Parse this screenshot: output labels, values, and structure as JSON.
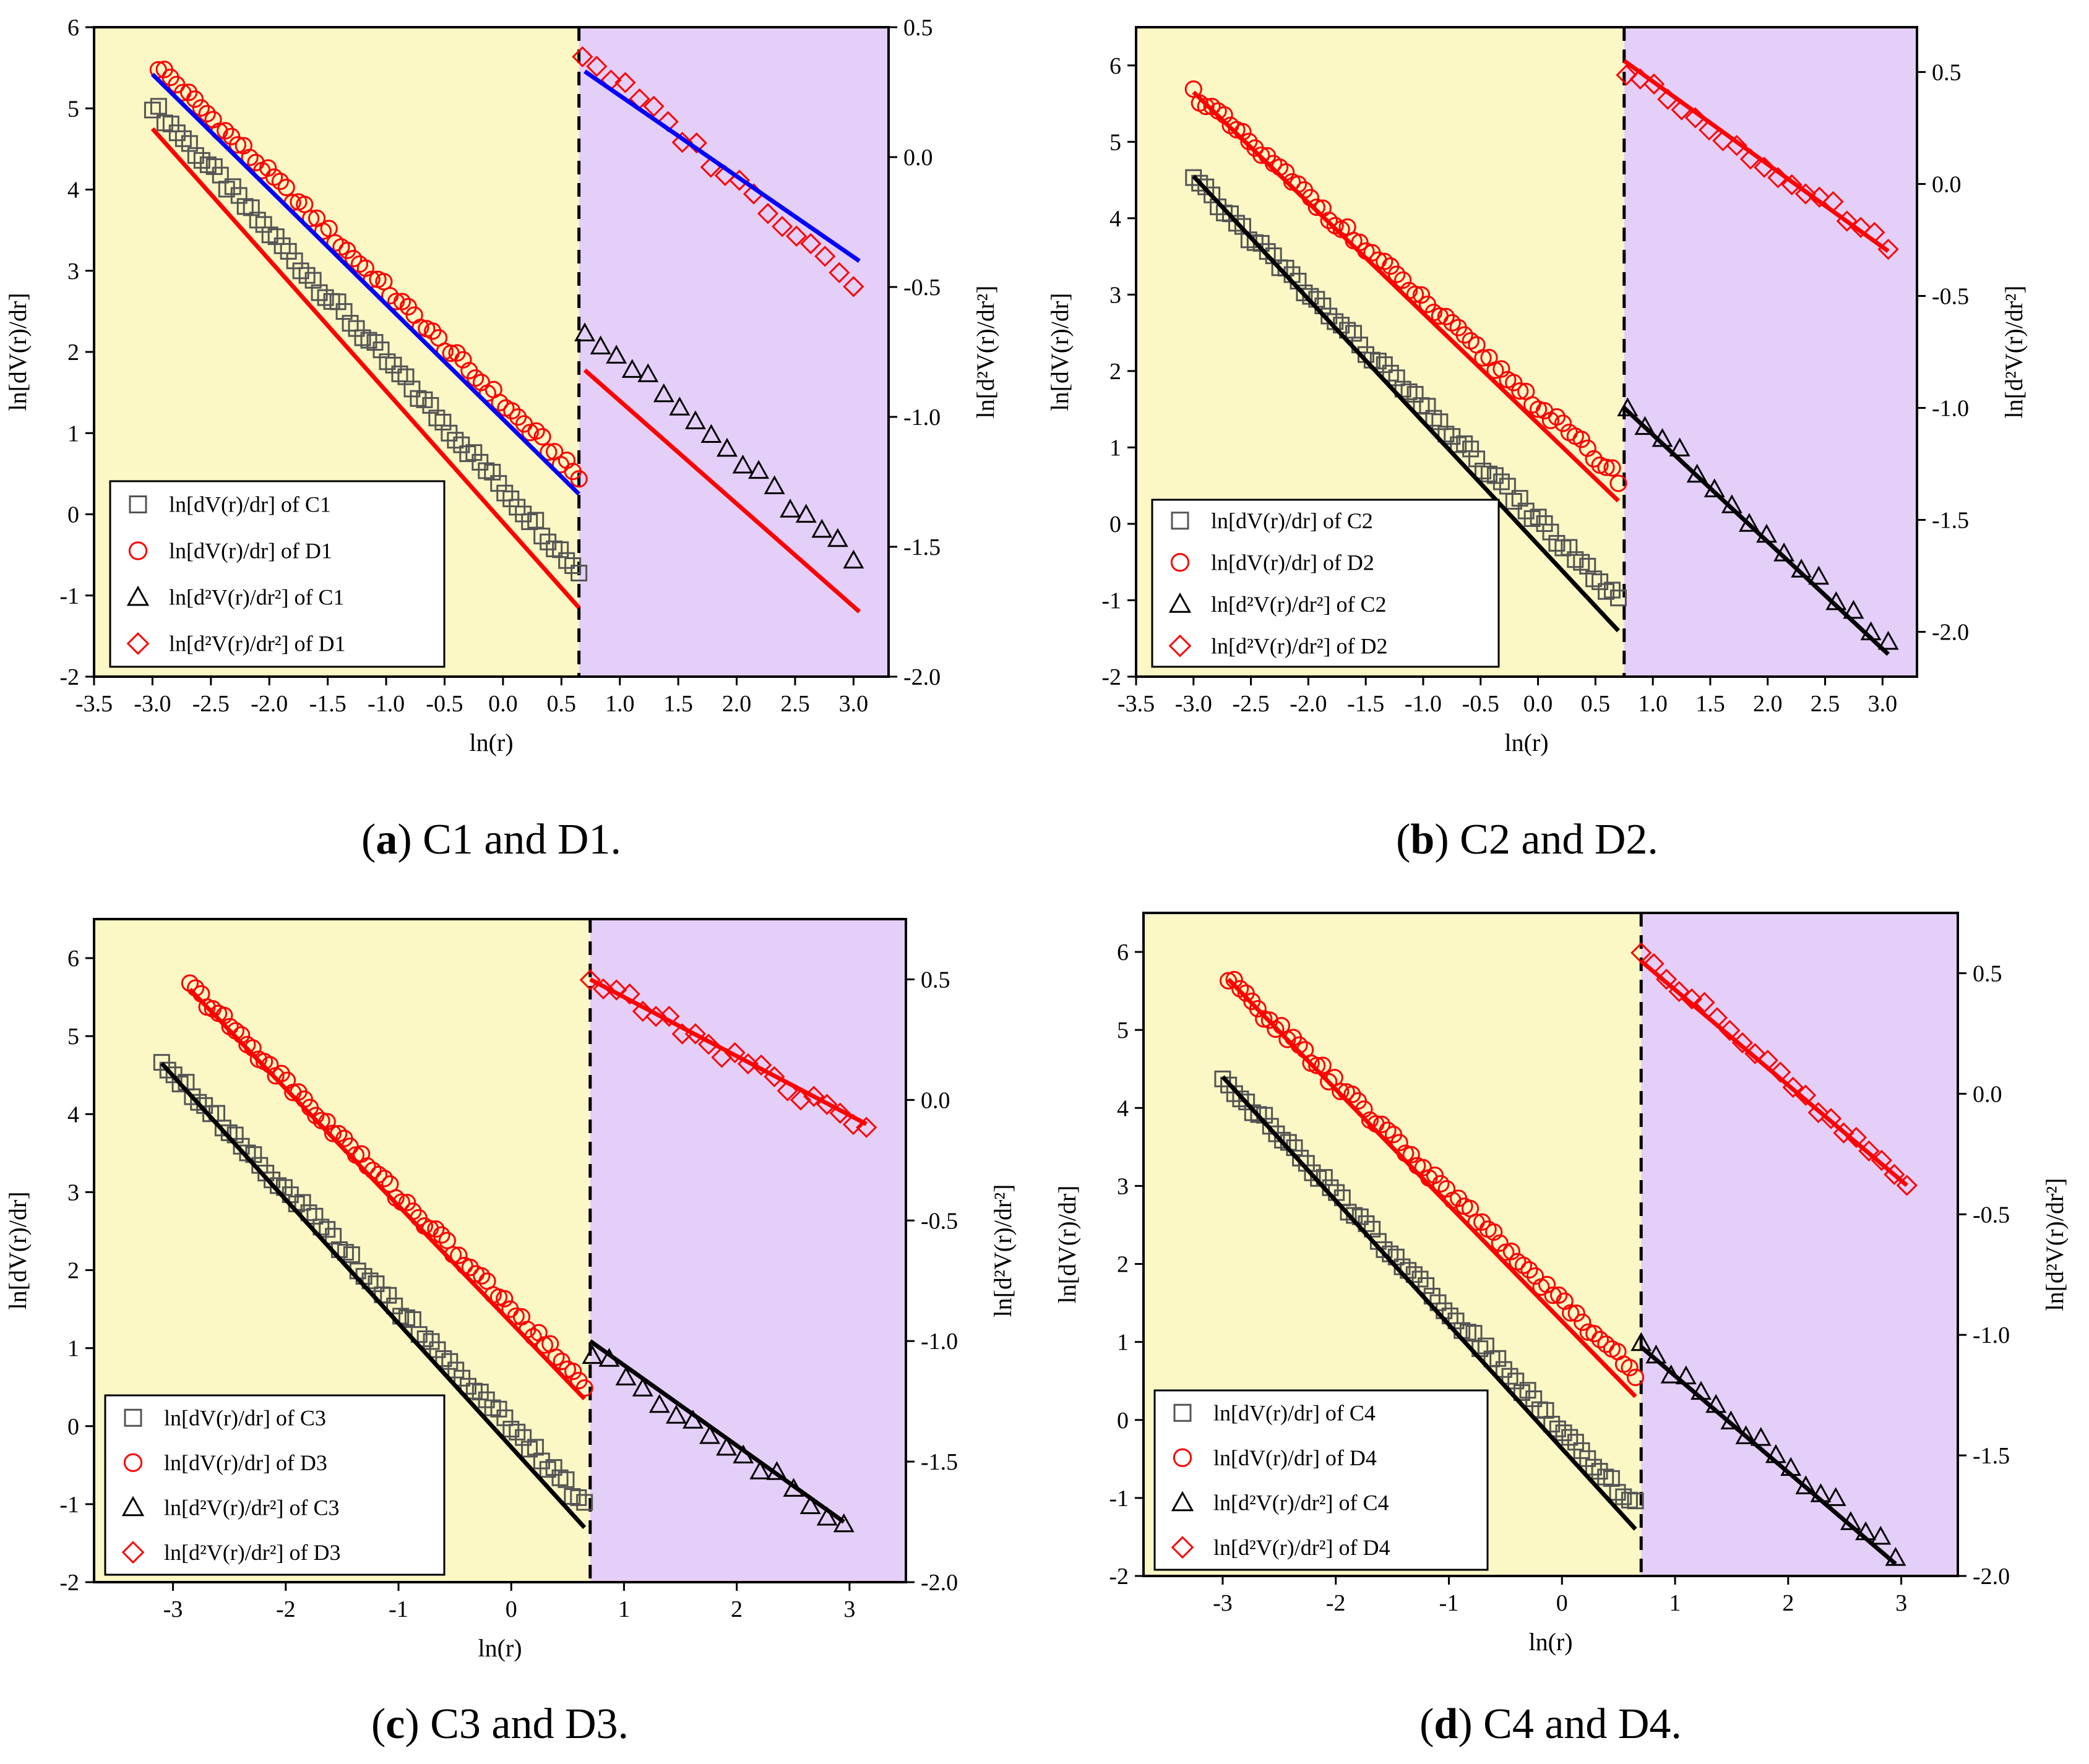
{
  "chart_data": [
    {
      "id": "a",
      "type": "scatter",
      "caption_letter": "a",
      "caption_text": " C1 and D1.",
      "xlabel": "ln(r)",
      "ylabel_left": "ln[dV(r)/dr]",
      "ylabel_right": "ln[d²V(r)/dr²]",
      "xlim": [
        -3.5,
        3.3
      ],
      "ylim_left": [
        -2,
        6
      ],
      "ylim_right": [
        -2.0,
        0.5
      ],
      "x_ticks": [
        "-3.5",
        "-3.0",
        "-2.5",
        "-2.0",
        "-1.5",
        "-1.0",
        "-0.5",
        "0.0",
        "0.5",
        "1.0",
        "1.5",
        "2.0",
        "2.5",
        "3.0"
      ],
      "x_tick_values": [
        -3.5,
        -3.0,
        -2.5,
        -2.0,
        -1.5,
        -1.0,
        -0.5,
        0.0,
        0.5,
        1.0,
        1.5,
        2.0,
        2.5,
        3.0
      ],
      "y_left_ticks": [
        "-2",
        "-1",
        "0",
        "1",
        "2",
        "3",
        "4",
        "5",
        "6"
      ],
      "y_left_tick_values": [
        -2,
        -1,
        0,
        1,
        2,
        3,
        4,
        5,
        6
      ],
      "y_right_ticks": [
        "0.5",
        "0.0",
        "-0.5",
        "-1.0",
        "-1.5",
        "-2.0"
      ],
      "y_right_tick_values": [
        0.5,
        0.0,
        -0.5,
        -1.0,
        -1.5,
        -2.0
      ],
      "divider_x": 0.65,
      "region_colors": {
        "left": "#fbf8c6",
        "right": "#e4cff8"
      },
      "legend": [
        {
          "marker": "square",
          "color": "#555555",
          "label": "ln[dV(r)/dr] of C1"
        },
        {
          "marker": "circle",
          "color": "#ff0000",
          "label": "ln[dV(r)/dr] of D1"
        },
        {
          "marker": "triangle",
          "color": "#000000",
          "label": "ln[d²V(r)/dr²] of C1"
        },
        {
          "marker": "diamond",
          "color": "#ff0000",
          "label": "ln[d²V(r)/dr²] of D1"
        }
      ],
      "series": [
        {
          "name": "ln[dV(r)/dr] of C1",
          "axis": "left",
          "marker": "square",
          "color": "#555555",
          "x_start": -3.0,
          "x_end": 0.65,
          "y_start": 5.05,
          "y_end": -0.7,
          "count": 70
        },
        {
          "name": "ln[dV(r)/dr] of D1",
          "axis": "left",
          "marker": "circle",
          "color": "#ff0000",
          "x_start": -2.95,
          "x_end": 0.65,
          "y_start": 5.52,
          "y_end": 0.45,
          "count": 70
        },
        {
          "name": "ln[d²V(r)/dr²] of C1",
          "axis": "right",
          "marker": "triangle",
          "color": "#000000",
          "x_start": 0.7,
          "x_end": 3.0,
          "y_start": -0.65,
          "y_end": -1.55,
          "count": 18
        },
        {
          "name": "ln[d²V(r)/dr²] of D1",
          "axis": "right",
          "marker": "diamond",
          "color": "#ff0000",
          "x_start": 0.68,
          "x_end": 3.0,
          "y_start": 0.4,
          "y_end": -0.47,
          "count": 20
        }
      ],
      "fits": [
        {
          "axis": "left",
          "color": "#ff0000",
          "x": [
            -3.0,
            0.65
          ],
          "y": [
            4.75,
            -1.15
          ]
        },
        {
          "axis": "left",
          "color": "#0000ff",
          "x": [
            -3.0,
            0.65
          ],
          "y": [
            5.42,
            0.25
          ]
        },
        {
          "axis": "right",
          "color": "#ff0000",
          "x": [
            0.7,
            3.05
          ],
          "y": [
            -0.82,
            -1.75
          ]
        },
        {
          "axis": "right",
          "color": "#0000ff",
          "x": [
            0.7,
            3.05
          ],
          "y": [
            0.33,
            -0.4
          ]
        }
      ]
    },
    {
      "id": "b",
      "type": "scatter",
      "caption_letter": "b",
      "caption_text": " C2 and D2.",
      "xlabel": "ln(r)",
      "ylabel_left": "ln[dV(r)/dr]",
      "ylabel_right": "ln[d²V(r)/dr²]",
      "xlim": [
        -3.5,
        3.3
      ],
      "ylim_left": [
        -2,
        6.5
      ],
      "ylim_right": [
        -2.2,
        0.7
      ],
      "x_ticks": [
        "-3.5",
        "-3.0",
        "-2.5",
        "-2.0",
        "-1.5",
        "-1.0",
        "-0.5",
        "0.0",
        "0.5",
        "1.0",
        "1.5",
        "2.0",
        "2.5",
        "3.0"
      ],
      "x_tick_values": [
        -3.5,
        -3.0,
        -2.5,
        -2.0,
        -1.5,
        -1.0,
        -0.5,
        0.0,
        0.5,
        1.0,
        1.5,
        2.0,
        2.5,
        3.0
      ],
      "y_left_ticks": [
        "-2",
        "-1",
        "0",
        "1",
        "2",
        "3",
        "4",
        "5",
        "6"
      ],
      "y_left_tick_values": [
        -2,
        -1,
        0,
        1,
        2,
        3,
        4,
        5,
        6
      ],
      "y_right_ticks": [
        "0.5",
        "0.0",
        "-0.5",
        "-1.0",
        "-1.5",
        "-2.0"
      ],
      "y_right_tick_values": [
        0.5,
        0.0,
        -0.5,
        -1.0,
        -1.5,
        -2.0
      ],
      "divider_x": 0.75,
      "region_colors": {
        "left": "#fbf8c6",
        "right": "#e4cff8"
      },
      "legend": [
        {
          "marker": "square",
          "color": "#555555",
          "label": "ln[dV(r)/dr] of C2"
        },
        {
          "marker": "circle",
          "color": "#ff0000",
          "label": "ln[dV(r)/dr] of D2"
        },
        {
          "marker": "triangle",
          "color": "#000000",
          "label": "ln[d²V(r)/dr²] of C2"
        },
        {
          "marker": "diamond",
          "color": "#ff0000",
          "label": "ln[d²V(r)/dr²] of D2"
        }
      ],
      "series": [
        {
          "name": "ln[dV(r)/dr] of C2",
          "axis": "left",
          "marker": "square",
          "color": "#555555",
          "x_start": -3.0,
          "x_end": 0.7,
          "y_start": 4.5,
          "y_end": -1.0,
          "count": 70
        },
        {
          "name": "ln[dV(r)/dr] of D2",
          "axis": "left",
          "marker": "circle",
          "color": "#ff0000",
          "x_start": -3.0,
          "x_end": 0.7,
          "y_start": 5.65,
          "y_end": 0.6,
          "count": 70
        },
        {
          "name": "ln[d²V(r)/dr²] of C2",
          "axis": "right",
          "marker": "triangle",
          "color": "#000000",
          "x_start": 0.78,
          "x_end": 3.05,
          "y_start": -1.0,
          "y_end": -2.05,
          "count": 16
        },
        {
          "name": "ln[d²V(r)/dr²] of D2",
          "axis": "right",
          "marker": "diamond",
          "color": "#ff0000",
          "x_start": 0.77,
          "x_end": 3.05,
          "y_start": 0.5,
          "y_end": -0.27,
          "count": 20
        }
      ],
      "fits": [
        {
          "axis": "left",
          "color": "#000000",
          "x": [
            -3.0,
            0.7
          ],
          "y": [
            4.55,
            -1.4
          ]
        },
        {
          "axis": "left",
          "color": "#ff0000",
          "x": [
            -3.0,
            0.7
          ],
          "y": [
            5.65,
            0.3
          ]
        },
        {
          "axis": "right",
          "color": "#000000",
          "x": [
            0.75,
            3.05
          ],
          "y": [
            -1.0,
            -2.1
          ]
        },
        {
          "axis": "right",
          "color": "#ff0000",
          "x": [
            0.75,
            3.05
          ],
          "y": [
            0.55,
            -0.3
          ]
        }
      ]
    },
    {
      "id": "c",
      "type": "scatter",
      "caption_letter": "c",
      "caption_text": " C3 and D3.",
      "xlabel": "ln(r)",
      "ylabel_left": "ln[dV(r)/dr]",
      "ylabel_right": "ln[d²V(r)/dr²]",
      "xlim": [
        -3.7,
        3.5
      ],
      "ylim_left": [
        -2,
        6.5
      ],
      "ylim_right": [
        -2.0,
        0.75
      ],
      "x_ticks": [
        "-3",
        "-2",
        "-1",
        "0",
        "1",
        "2",
        "3"
      ],
      "x_tick_values": [
        -3,
        -2,
        -1,
        0,
        1,
        2,
        3
      ],
      "y_left_ticks": [
        "-2",
        "-1",
        "0",
        "1",
        "2",
        "3",
        "4",
        "5",
        "6"
      ],
      "y_left_tick_values": [
        -2,
        -1,
        0,
        1,
        2,
        3,
        4,
        5,
        6
      ],
      "y_right_ticks": [
        "0.5",
        "0.0",
        "-0.5",
        "-1.0",
        "-1.5",
        "-2.0"
      ],
      "y_right_tick_values": [
        0.5,
        0.0,
        -0.5,
        -1.0,
        -1.5,
        -2.0
      ],
      "divider_x": 0.7,
      "region_colors": {
        "left": "#fbf8c6",
        "right": "#e4cff8"
      },
      "legend": [
        {
          "marker": "square",
          "color": "#555555",
          "label": "ln[dV(r)/dr] of C3"
        },
        {
          "marker": "circle",
          "color": "#ff0000",
          "label": "ln[dV(r)/dr] of D3"
        },
        {
          "marker": "triangle",
          "color": "#000000",
          "label": "ln[d²V(r)/dr²] of C3"
        },
        {
          "marker": "diamond",
          "color": "#ff0000",
          "label": "ln[d²V(r)/dr²] of D3"
        }
      ],
      "series": [
        {
          "name": "ln[dV(r)/dr] of C3",
          "axis": "left",
          "marker": "square",
          "color": "#555555",
          "x_start": -3.1,
          "x_end": 0.65,
          "y_start": 4.7,
          "y_end": -1.0,
          "count": 70
        },
        {
          "name": "ln[dV(r)/dr] of D3",
          "axis": "left",
          "marker": "circle",
          "color": "#ff0000",
          "x_start": -2.85,
          "x_end": 0.65,
          "y_start": 5.65,
          "y_end": 0.55,
          "count": 70
        },
        {
          "name": "ln[d²V(r)/dr²] of C3",
          "axis": "right",
          "marker": "triangle",
          "color": "#000000",
          "x_start": 0.72,
          "x_end": 2.95,
          "y_start": -1.05,
          "y_end": -1.75,
          "count": 16
        },
        {
          "name": "ln[d²V(r)/dr²] of D3",
          "axis": "right",
          "marker": "diamond",
          "color": "#ff0000",
          "x_start": 0.7,
          "x_end": 3.15,
          "y_start": 0.5,
          "y_end": -0.12,
          "count": 22
        }
      ],
      "fits": [
        {
          "axis": "left",
          "color": "#000000",
          "x": [
            -3.1,
            0.65
          ],
          "y": [
            4.65,
            -1.3
          ]
        },
        {
          "axis": "left",
          "color": "#ff0000",
          "x": [
            -2.85,
            0.65
          ],
          "y": [
            5.6,
            0.35
          ]
        },
        {
          "axis": "right",
          "color": "#000000",
          "x": [
            0.7,
            2.95
          ],
          "y": [
            -1.0,
            -1.75
          ]
        },
        {
          "axis": "right",
          "color": "#ff0000",
          "x": [
            0.7,
            3.15
          ],
          "y": [
            0.5,
            -0.1
          ]
        }
      ]
    },
    {
      "id": "d",
      "type": "scatter",
      "caption_letter": "d",
      "caption_text": " C4 and D4.",
      "xlabel": "ln(r)",
      "ylabel_left": "ln[dV(r)/dr]",
      "ylabel_right": "ln[d²V(r)/dr²]",
      "xlim": [
        -3.7,
        3.5
      ],
      "ylim_left": [
        -2,
        6.5
      ],
      "ylim_right": [
        -2.0,
        0.75
      ],
      "x_ticks": [
        "-3",
        "-2",
        "-1",
        "0",
        "1",
        "2",
        "3"
      ],
      "x_tick_values": [
        -3,
        -2,
        -1,
        0,
        1,
        2,
        3
      ],
      "y_left_ticks": [
        "-2",
        "-1",
        "0",
        "1",
        "2",
        "3",
        "4",
        "5",
        "6"
      ],
      "y_left_tick_values": [
        -2,
        -1,
        0,
        1,
        2,
        3,
        4,
        5,
        6
      ],
      "y_right_ticks": [
        "0.5",
        "0.0",
        "-0.5",
        "-1.0",
        "-1.5",
        "-2.0"
      ],
      "y_right_tick_values": [
        0.5,
        0.0,
        -0.5,
        -1.0,
        -1.5,
        -2.0
      ],
      "divider_x": 0.7,
      "region_colors": {
        "left": "#fbf8c6",
        "right": "#e4cff8"
      },
      "legend": [
        {
          "marker": "square",
          "color": "#555555",
          "label": "ln[dV(r)/dr] of C4"
        },
        {
          "marker": "circle",
          "color": "#ff0000",
          "label": "ln[dV(r)/dr] of D4"
        },
        {
          "marker": "triangle",
          "color": "#000000",
          "label": "ln[d²V(r)/dr²] of C4"
        },
        {
          "marker": "diamond",
          "color": "#ff0000",
          "label": "ln[d²V(r)/dr²] of D4"
        }
      ],
      "series": [
        {
          "name": "ln[dV(r)/dr] of C4",
          "axis": "left",
          "marker": "square",
          "color": "#555555",
          "x_start": -3.0,
          "x_end": 0.65,
          "y_start": 4.4,
          "y_end": -1.1,
          "count": 70
        },
        {
          "name": "ln[dV(r)/dr] of D4",
          "axis": "left",
          "marker": "circle",
          "color": "#ff0000",
          "x_start": -2.95,
          "x_end": 0.65,
          "y_start": 5.65,
          "y_end": 0.6,
          "count": 70
        },
        {
          "name": "ln[d²V(r)/dr²] of C4",
          "axis": "right",
          "marker": "triangle",
          "color": "#000000",
          "x_start": 0.7,
          "x_end": 2.95,
          "y_start": -1.05,
          "y_end": -1.9,
          "count": 18
        },
        {
          "name": "ln[d²V(r)/dr²] of D4",
          "axis": "right",
          "marker": "diamond",
          "color": "#ff0000",
          "x_start": 0.7,
          "x_end": 3.05,
          "y_start": 0.58,
          "y_end": -0.38,
          "count": 22
        }
      ],
      "fits": [
        {
          "axis": "left",
          "color": "#000000",
          "x": [
            -3.0,
            0.65
          ],
          "y": [
            4.4,
            -1.4
          ]
        },
        {
          "axis": "left",
          "color": "#ff0000",
          "x": [
            -2.95,
            0.65
          ],
          "y": [
            5.65,
            0.3
          ]
        },
        {
          "axis": "right",
          "color": "#000000",
          "x": [
            0.7,
            2.95
          ],
          "y": [
            -1.05,
            -1.95
          ]
        },
        {
          "axis": "right",
          "color": "#ff0000",
          "x": [
            0.7,
            3.05
          ],
          "y": [
            0.55,
            -0.38
          ]
        }
      ]
    }
  ]
}
